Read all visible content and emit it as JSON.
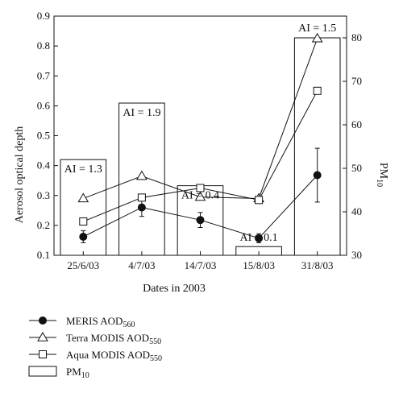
{
  "chart_data": {
    "type": "bar",
    "xlabel": "Dates in 2003",
    "ylabel": "Aerosol optical depth",
    "y2label": {
      "main": "PM",
      "sub": "10"
    },
    "categories": [
      "25/6/03",
      "4/7/03",
      "14/7/03",
      "15/8/03",
      "31/8/03"
    ],
    "ylim": [
      0.1,
      0.9
    ],
    "yticks": [
      "0.1",
      "0.2",
      "0.3",
      "0.4",
      "0.5",
      "0.6",
      "0.7",
      "0.8",
      "0.9"
    ],
    "y2lim": [
      30,
      85
    ],
    "y2ticks": [
      "30",
      "40",
      "50",
      "60",
      "70",
      "80"
    ],
    "bars": {
      "name": {
        "main": "PM",
        "sub": "10"
      },
      "values": [
        52,
        65,
        46,
        32,
        80
      ]
    },
    "series": [
      {
        "name": {
          "main": "MERIS AOD",
          "sub": "560"
        },
        "marker": "filled-circle",
        "values": [
          0.162,
          0.26,
          0.218,
          0.157,
          0.368
        ],
        "errors": [
          0.02,
          0.03,
          0.025,
          0.015,
          0.09
        ]
      },
      {
        "name": {
          "main": "Terra MODIS AOD",
          "sub": "550"
        },
        "marker": "open-triangle",
        "values": [
          0.29,
          0.365,
          0.295,
          0.29,
          0.825
        ]
      },
      {
        "name": {
          "main": "Aqua MODIS AOD",
          "sub": "550"
        },
        "marker": "open-square",
        "values": [
          0.213,
          0.293,
          0.325,
          0.285,
          0.65
        ]
      }
    ],
    "annotations": [
      "AI = 1.3",
      "AI = 1.9",
      "AI = 0.4",
      "AI = 0.1",
      "AI = 1.5"
    ]
  }
}
